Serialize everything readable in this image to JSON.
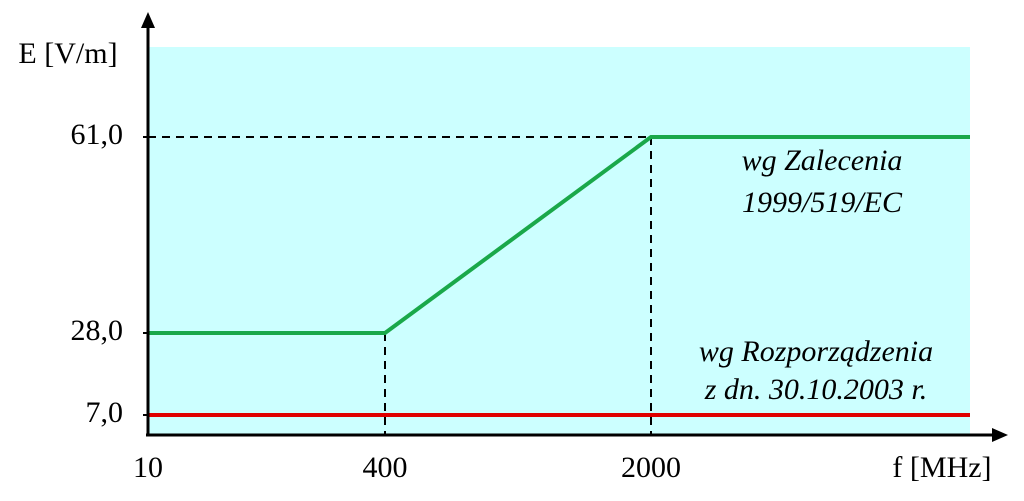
{
  "chart_data": {
    "type": "line",
    "x_label": "f [MHz]",
    "y_label": "E [V/m]",
    "xlim": [
      10,
      3000
    ],
    "xticks": [
      10,
      400,
      2000
    ],
    "ylim": [
      0,
      76
    ],
    "yticks": [
      {
        "value": 7,
        "label": "7,0"
      },
      {
        "value": 28,
        "label": "28,0"
      },
      {
        "value": 61,
        "label": "61,0"
      }
    ],
    "series": [
      {
        "color": "#1aa84a",
        "x": [
          10,
          400,
          2000,
          3000
        ],
        "values": [
          28,
          28,
          61,
          61
        ]
      },
      {
        "color": "#e00000",
        "x": [
          10,
          3000
        ],
        "values": [
          7,
          7
        ]
      }
    ],
    "annotations": [
      "wg Zalecenia",
      "1999/519/EC",
      "wg Rozporządzenia",
      "z dn. 30.10.2003 r."
    ]
  }
}
